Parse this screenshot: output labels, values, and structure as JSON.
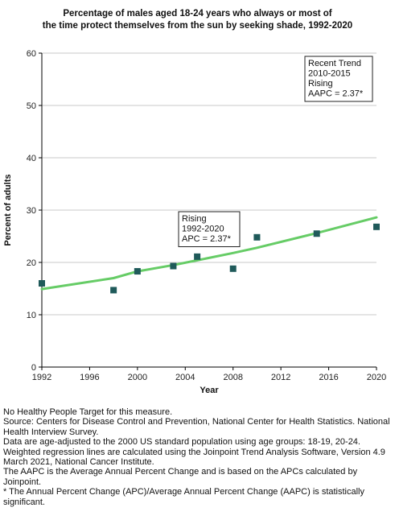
{
  "chart_data": {
    "type": "line",
    "title": [
      "Percentage of males aged 18-24 years who always or most of",
      "the time protect themselves from the sun by seeking shade, 1992-2020"
    ],
    "xlabel": "Year",
    "ylabel": "Percent of adults",
    "xlim": [
      1992,
      2020
    ],
    "ylim": [
      0,
      60
    ],
    "x_ticks": [
      1992,
      1996,
      2000,
      2004,
      2008,
      2012,
      2016,
      2020
    ],
    "y_ticks": [
      0,
      10,
      20,
      30,
      40,
      50,
      60
    ],
    "grid": "horizontal",
    "series": [
      {
        "kind": "points",
        "marker": "square",
        "color": "#1f5a5a",
        "x": [
          1992,
          1998,
          2000,
          2003,
          2005,
          2008,
          2010,
          2015,
          2020
        ],
        "y": [
          16.0,
          14.7,
          18.3,
          19.3,
          21.1,
          18.8,
          24.8,
          25.5,
          26.8
        ]
      },
      {
        "kind": "trend",
        "color": "#66cc66",
        "x": [
          1992,
          1998,
          2000,
          2003,
          2005,
          2008,
          2010,
          2015,
          2020
        ],
        "y": [
          14.9,
          17.0,
          18.3,
          19.5,
          20.4,
          21.8,
          22.8,
          25.6,
          28.6
        ]
      }
    ],
    "annotations": [
      {
        "name": "overall-trend",
        "lines": [
          "Rising",
          "1992-2020",
          "APC =  2.37*"
        ]
      },
      {
        "name": "recent-trend",
        "lines": [
          "Recent Trend",
          "2010-2015",
          "Rising",
          "AAPC =  2.37*"
        ]
      }
    ]
  },
  "notes": [
    "No Healthy People Target for this measure.",
    "Source: Centers for Disease Control and Prevention, National Center for Health Statistics. National Health Interview Survey.",
    "Data are age-adjusted to the 2000 US standard population using age groups: 18-19, 20-24.",
    "Weighted regression lines are calculated using the Joinpoint Trend Analysis Software, Version 4.9 March 2021, National Cancer Institute.",
    "The AAPC is the Average Annual Percent Change and is based on the APCs calculated by Joinpoint.",
    "* The Annual Percent Change (APC)/Average Annual Percent Change (AAPC) is statistically significant."
  ]
}
